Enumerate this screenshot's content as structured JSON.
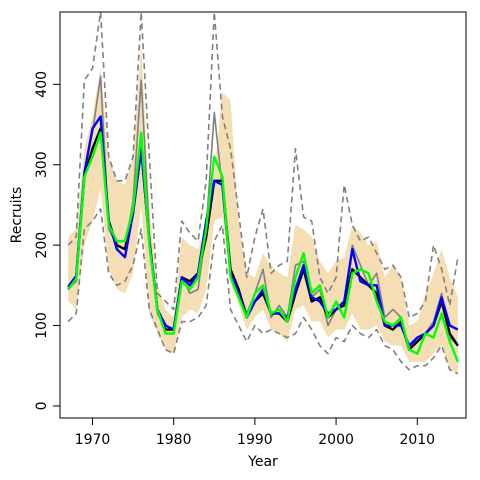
{
  "chart_data": {
    "type": "line",
    "title": "",
    "xlabel": "Year",
    "ylabel": "Recruits",
    "xlim": [
      1966,
      2016
    ],
    "ylim": [
      -15,
      490
    ],
    "xticks": [
      1970,
      1980,
      1990,
      2000,
      2010
    ],
    "yticks": [
      0,
      100,
      200,
      300,
      400
    ],
    "grid": false,
    "legend": "none",
    "colors": {
      "band": "#f5deb3",
      "gray": "#808080",
      "black": "#000000",
      "blue": "#0000ff",
      "green": "#00ff00"
    },
    "x": [
      1967,
      1968,
      1969,
      1970,
      1971,
      1972,
      1973,
      1974,
      1975,
      1976,
      1977,
      1978,
      1979,
      1980,
      1981,
      1982,
      1983,
      1984,
      1985,
      1986,
      1987,
      1988,
      1989,
      1990,
      1991,
      1992,
      1993,
      1994,
      1995,
      1996,
      1997,
      1998,
      1999,
      2000,
      2001,
      2002,
      2003,
      2004,
      2005,
      2006,
      2007,
      2008,
      2009,
      2010,
      2011,
      2012,
      2013,
      2014,
      2015
    ],
    "band": {
      "name": "",
      "lower": [
        130,
        120,
        200,
        230,
        270,
        170,
        145,
        140,
        165,
        250,
        115,
        90,
        70,
        65,
        110,
        120,
        115,
        145,
        230,
        235,
        155,
        125,
        95,
        110,
        120,
        95,
        90,
        80,
        120,
        125,
        105,
        105,
        85,
        95,
        95,
        115,
        95,
        95,
        100,
        80,
        75,
        75,
        55,
        55,
        55,
        65,
        75,
        45,
        40
      ],
      "upper": [
        210,
        220,
        320,
        360,
        420,
        310,
        280,
        275,
        310,
        450,
        250,
        150,
        120,
        110,
        210,
        200,
        195,
        220,
        290,
        390,
        380,
        230,
        165,
        160,
        190,
        175,
        165,
        160,
        225,
        220,
        210,
        180,
        165,
        180,
        185,
        225,
        215,
        200,
        205,
        160,
        175,
        160,
        100,
        105,
        140,
        165,
        195,
        160,
        135
      ]
    },
    "series": [
      {
        "name": "",
        "style": "solid",
        "color": "gray",
        "values": [
          145,
          155,
          290,
          340,
          410,
          220,
          200,
          195,
          255,
          405,
          215,
          115,
          95,
          95,
          160,
          140,
          145,
          220,
          365,
          270,
          160,
          145,
          115,
          140,
          170,
          110,
          125,
          110,
          175,
          180,
          135,
          145,
          100,
          120,
          125,
          200,
          175,
          150,
          165,
          110,
          120,
          110,
          70,
          85,
          90,
          105,
          140,
          85,
          75
        ]
      },
      {
        "name": "",
        "style": "dashed",
        "color": "gray",
        "values": [
          105,
          115,
          220,
          230,
          245,
          165,
          150,
          155,
          175,
          220,
          120,
          95,
          70,
          65,
          105,
          105,
          110,
          125,
          205,
          225,
          120,
          100,
          80,
          100,
          90,
          95,
          90,
          85,
          90,
          110,
          95,
          75,
          65,
          85,
          80,
          100,
          90,
          85,
          95,
          75,
          70,
          55,
          45,
          50,
          50,
          60,
          75,
          45,
          40
        ]
      },
      {
        "name": "",
        "style": "dashed",
        "color": "gray",
        "values": [
          200,
          210,
          405,
          420,
          490,
          310,
          280,
          280,
          310,
          490,
          310,
          140,
          130,
          120,
          230,
          215,
          205,
          280,
          490,
          360,
          320,
          240,
          160,
          210,
          245,
          165,
          175,
          180,
          320,
          235,
          230,
          160,
          140,
          160,
          275,
          225,
          205,
          210,
          190,
          170,
          175,
          160,
          110,
          115,
          130,
          200,
          170,
          125,
          185
        ]
      },
      {
        "name": "",
        "style": "solid",
        "color": "black",
        "values": [
          145,
          160,
          285,
          320,
          345,
          230,
          200,
          195,
          240,
          320,
          205,
          120,
          95,
          95,
          160,
          155,
          165,
          210,
          280,
          280,
          170,
          145,
          110,
          130,
          140,
          115,
          115,
          105,
          140,
          170,
          130,
          135,
          110,
          120,
          125,
          170,
          160,
          150,
          140,
          100,
          95,
          105,
          70,
          80,
          90,
          100,
          130,
          90,
          75
        ]
      },
      {
        "name": "",
        "style": "solid",
        "color": "blue",
        "values": [
          148,
          162,
          290,
          345,
          360,
          230,
          195,
          185,
          240,
          320,
          205,
          120,
          100,
          95,
          160,
          150,
          165,
          230,
          280,
          275,
          165,
          140,
          110,
          130,
          145,
          115,
          115,
          110,
          145,
          175,
          135,
          130,
          115,
          120,
          130,
          195,
          155,
          150,
          150,
          100,
          100,
          100,
          75,
          85,
          90,
          100,
          135,
          100,
          95
        ]
      },
      {
        "name": "",
        "style": "solid",
        "color": "green",
        "values": [
          145,
          158,
          285,
          310,
          340,
          225,
          205,
          205,
          245,
          340,
          200,
          120,
          90,
          90,
          155,
          145,
          160,
          220,
          310,
          285,
          160,
          135,
          110,
          140,
          150,
          115,
          120,
          105,
          160,
          190,
          140,
          150,
          110,
          130,
          110,
          165,
          170,
          165,
          130,
          105,
          100,
          110,
          70,
          65,
          90,
          85,
          115,
          80,
          55
        ]
      }
    ]
  }
}
